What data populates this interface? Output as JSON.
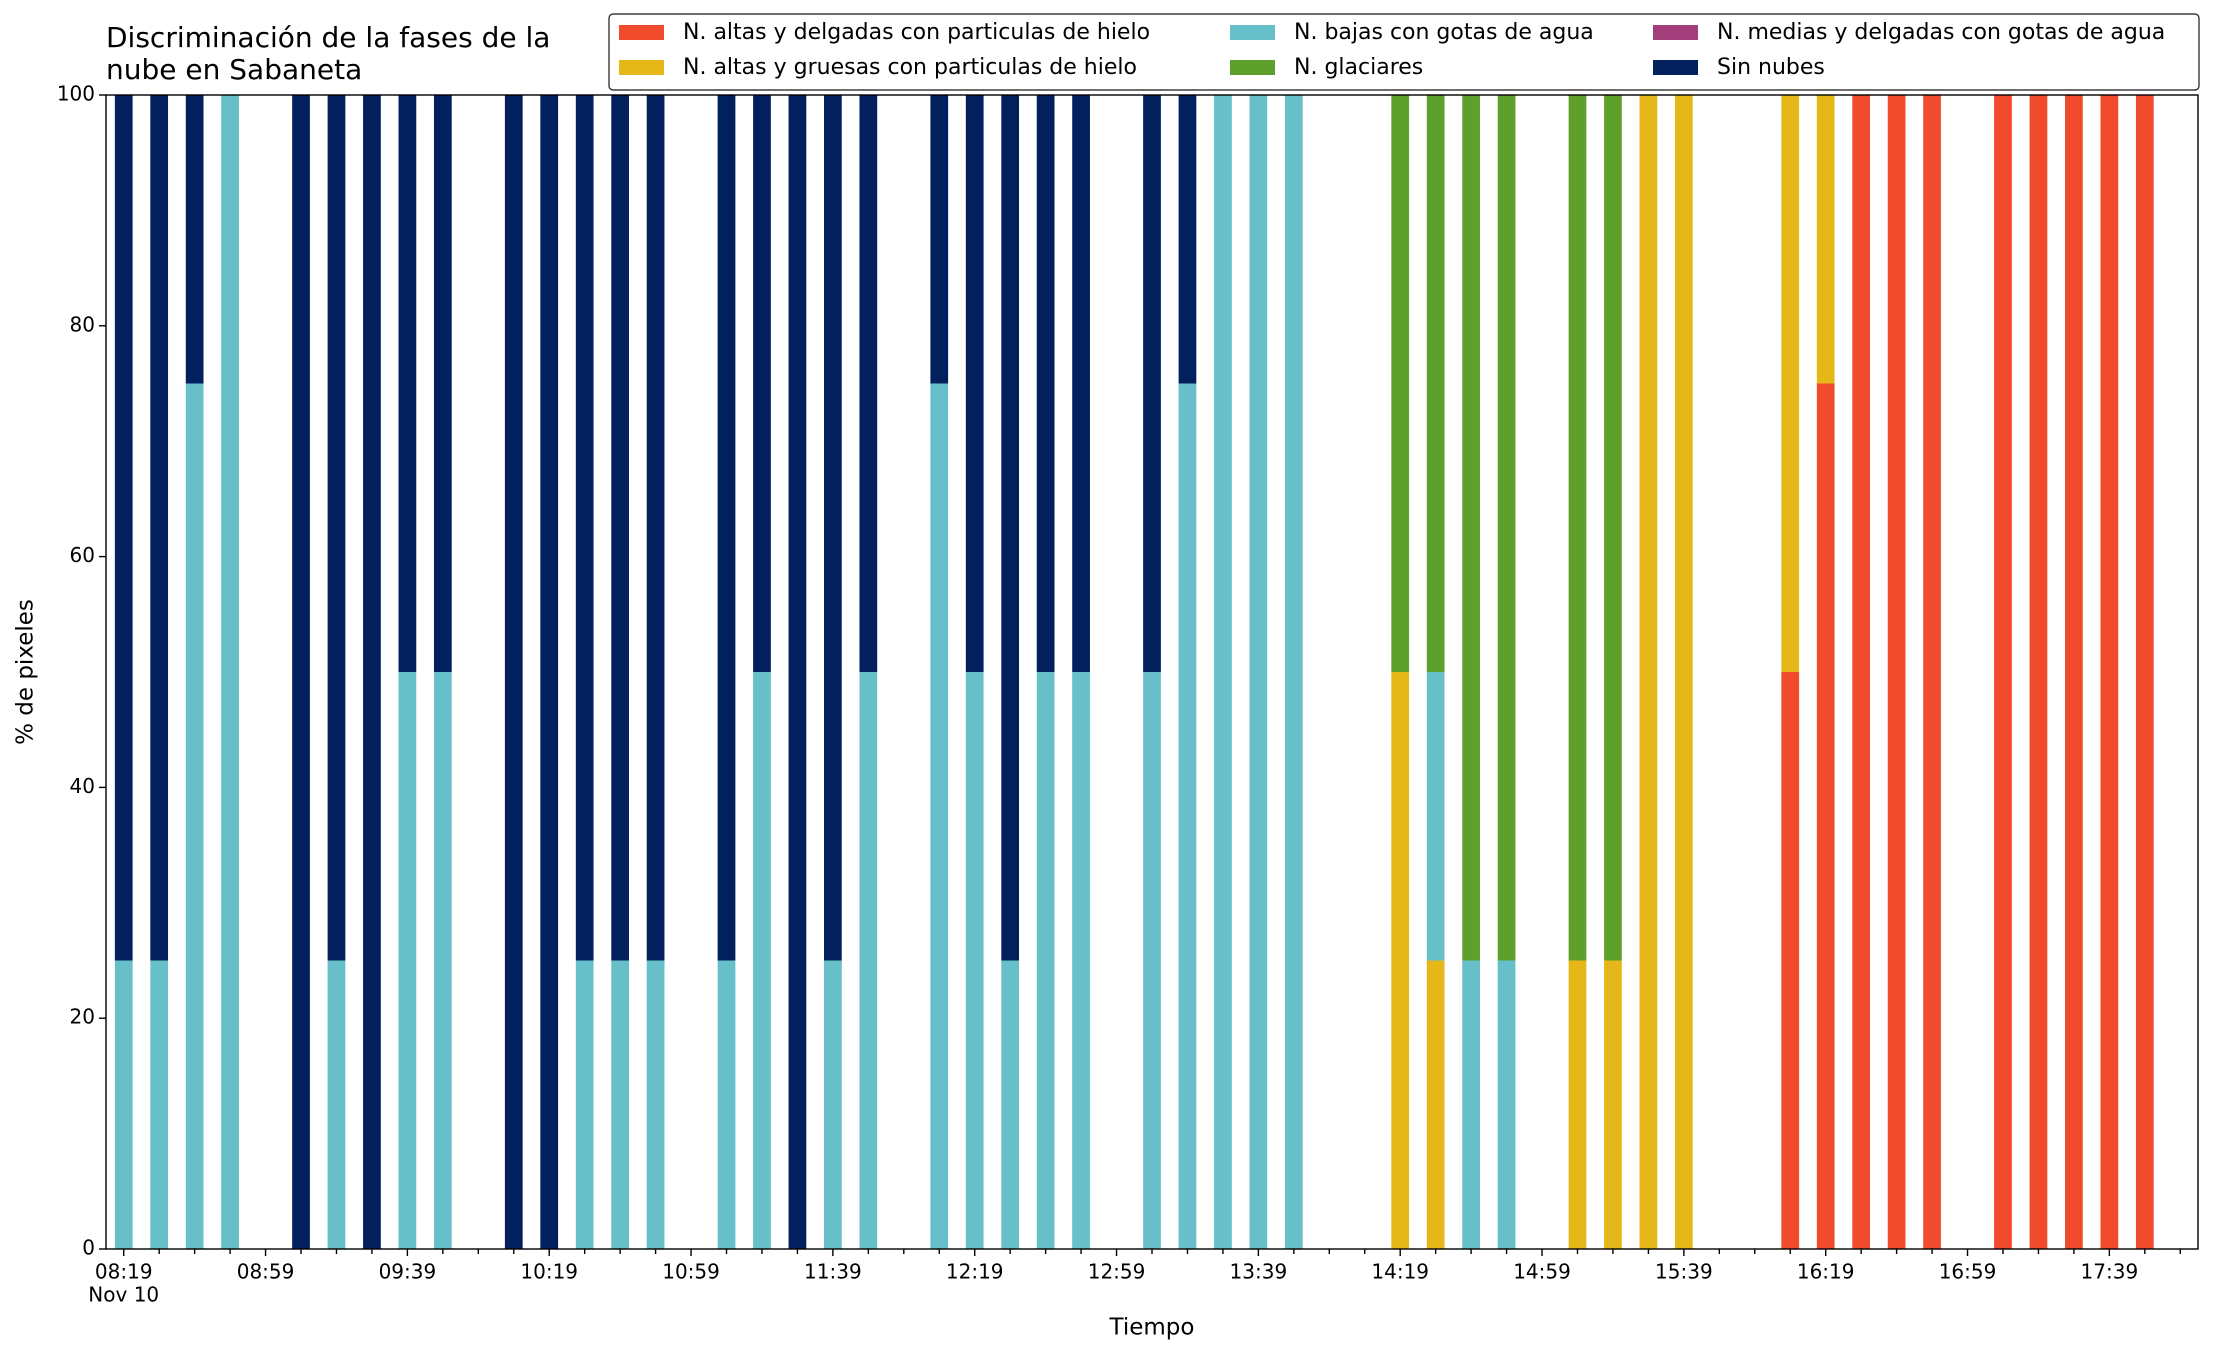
{
  "chart_data": {
    "type": "stacked_bar",
    "title": "Discriminación de la fases de la\nnube en Sabaneta",
    "x_label": "Tiempo",
    "y_label": "% de pixeles",
    "x_start_date": "Nov 10",
    "categories": [
      "08:19",
      null,
      null,
      null,
      "08:59",
      null,
      null,
      null,
      "09:39",
      null,
      null,
      null,
      "10:19",
      null,
      null,
      null,
      "10:59",
      null,
      null,
      null,
      "11:39",
      null,
      null,
      null,
      "12:19",
      null,
      null,
      null,
      "12:59",
      null,
      null,
      null,
      "13:39",
      null,
      null,
      null,
      "14:19",
      null,
      null,
      null,
      "14:59",
      null,
      null,
      null,
      "15:39",
      null,
      null,
      null,
      "16:19",
      null,
      null,
      null,
      "16:59",
      null,
      null,
      null,
      "17:39",
      null,
      null
    ],
    "ylim": [
      0,
      100
    ],
    "yticks": [
      0,
      20,
      40,
      60,
      80,
      100
    ],
    "series": [
      {
        "name": "N. altas y delgadas con particulas de hielo",
        "color": "#f04b2c",
        "values": [
          0,
          0,
          0,
          0,
          0,
          0,
          0,
          0,
          0,
          0,
          0,
          0,
          0,
          0,
          0,
          0,
          0,
          0,
          0,
          0,
          0,
          0,
          0,
          0,
          0,
          0,
          0,
          0,
          0,
          0,
          0,
          0,
          0,
          0,
          0,
          0,
          0,
          0,
          0,
          0,
          0,
          0,
          0,
          0,
          0,
          0,
          0,
          50,
          75,
          100,
          100,
          100,
          0,
          100,
          100,
          100,
          100,
          100,
          0
        ]
      },
      {
        "name": "N. altas y gruesas con particulas de hielo",
        "color": "#e6b719",
        "values": [
          0,
          0,
          0,
          0,
          0,
          0,
          0,
          0,
          0,
          0,
          0,
          0,
          0,
          0,
          0,
          0,
          0,
          0,
          0,
          0,
          0,
          0,
          0,
          0,
          0,
          0,
          0,
          0,
          0,
          0,
          0,
          0,
          0,
          0,
          0,
          0,
          50,
          25,
          0,
          0,
          0,
          25,
          25,
          100,
          100,
          0,
          0,
          50,
          25,
          0,
          0,
          0,
          0,
          0,
          0,
          0,
          0,
          0,
          0
        ]
      },
      {
        "name": "N. bajas con gotas de agua",
        "color": "#67bfca",
        "values": [
          25,
          25,
          75,
          100,
          0,
          0,
          25,
          0,
          50,
          50,
          0,
          0,
          0,
          25,
          25,
          25,
          0,
          25,
          50,
          0,
          25,
          50,
          0,
          75,
          50,
          25,
          50,
          50,
          0,
          50,
          75,
          100,
          100,
          100,
          0,
          0,
          0,
          25,
          25,
          25,
          0,
          0,
          0,
          0,
          0,
          0,
          0,
          0,
          0,
          0,
          0,
          0,
          0,
          0,
          0,
          0,
          0,
          0,
          0
        ]
      },
      {
        "name": "N. glaciares",
        "color": "#5fa02c",
        "values": [
          0,
          0,
          0,
          0,
          0,
          0,
          0,
          0,
          0,
          0,
          0,
          0,
          0,
          0,
          0,
          0,
          0,
          0,
          0,
          0,
          0,
          0,
          0,
          0,
          0,
          0,
          0,
          0,
          0,
          0,
          0,
          0,
          0,
          0,
          0,
          0,
          50,
          50,
          75,
          75,
          0,
          75,
          75,
          0,
          0,
          0,
          0,
          0,
          0,
          0,
          0,
          0,
          0,
          0,
          0,
          0,
          0,
          0,
          0
        ]
      },
      {
        "name": "N. medias y delgadas con gotas de agua",
        "color": "#a23f7a",
        "values": [
          0,
          0,
          0,
          0,
          0,
          0,
          0,
          0,
          0,
          0,
          0,
          0,
          0,
          0,
          0,
          0,
          0,
          0,
          0,
          0,
          0,
          0,
          0,
          0,
          0,
          0,
          0,
          0,
          0,
          0,
          0,
          0,
          0,
          0,
          0,
          0,
          0,
          0,
          0,
          0,
          0,
          0,
          0,
          0,
          0,
          0,
          0,
          0,
          0,
          0,
          0,
          0,
          0,
          0,
          0,
          0,
          0,
          0,
          0
        ]
      },
      {
        "name": "Sin nubes",
        "color": "#021f5e",
        "values": [
          75,
          75,
          25,
          0,
          0,
          100,
          75,
          100,
          50,
          50,
          0,
          100,
          100,
          75,
          75,
          75,
          0,
          75,
          50,
          100,
          75,
          50,
          0,
          25,
          50,
          75,
          50,
          50,
          0,
          50,
          25,
          0,
          0,
          0,
          0,
          0,
          0,
          0,
          0,
          0,
          0,
          0,
          0,
          0,
          0,
          0,
          0,
          0,
          0,
          0,
          0,
          0,
          0,
          0,
          0,
          0,
          0,
          0,
          0
        ]
      }
    ]
  }
}
